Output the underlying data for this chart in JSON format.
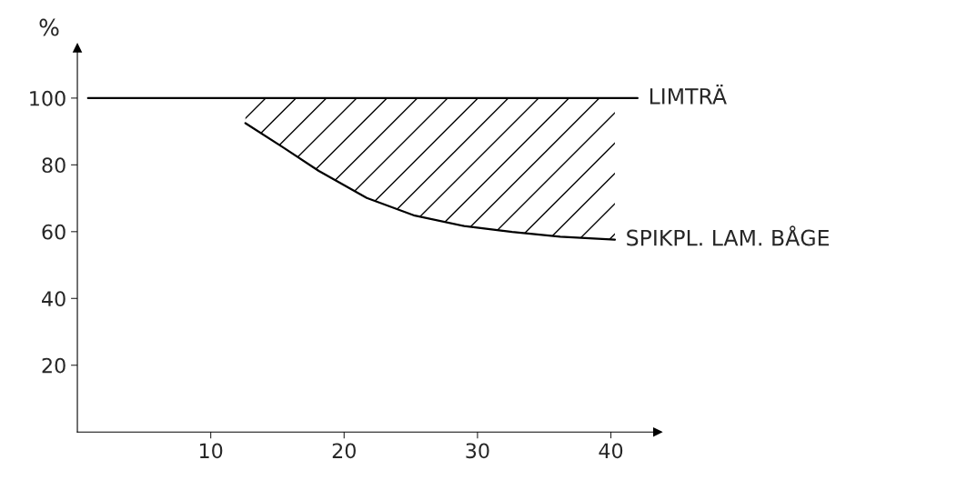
{
  "chart_data": {
    "type": "line",
    "ylabel": "%",
    "series": [
      {
        "name": "LIMTRÄ",
        "color": "#000000",
        "x": [
          0.8,
          42
        ],
        "values": [
          100,
          100
        ]
      },
      {
        "name": "SPIKPL. LAM. BÅGE",
        "color": "#000000",
        "x": [
          12.6,
          15.4,
          18.1,
          21.7,
          25.3,
          29,
          32.6,
          36.2,
          40.3
        ],
        "values": [
          92.5,
          85.3,
          78.2,
          70.1,
          64.8,
          61.7,
          59.9,
          58.5,
          57.6
        ],
        "lower": [
          92.5,
          85.3,
          78.2,
          70.1,
          64.8,
          61.7,
          59.9,
          58.5,
          57.6
        ],
        "upper": [
          100,
          100,
          100,
          100,
          100,
          100,
          100,
          100,
          100
        ]
      }
    ],
    "xlim": [
      0,
      43.5
    ],
    "xticks": [
      10,
      20,
      30,
      40
    ],
    "ylim": [
      0,
      115
    ],
    "yticks": [
      20,
      40,
      60,
      80,
      100
    ],
    "grid": false,
    "legend": false,
    "marker": "none",
    "line_style": "solid"
  }
}
